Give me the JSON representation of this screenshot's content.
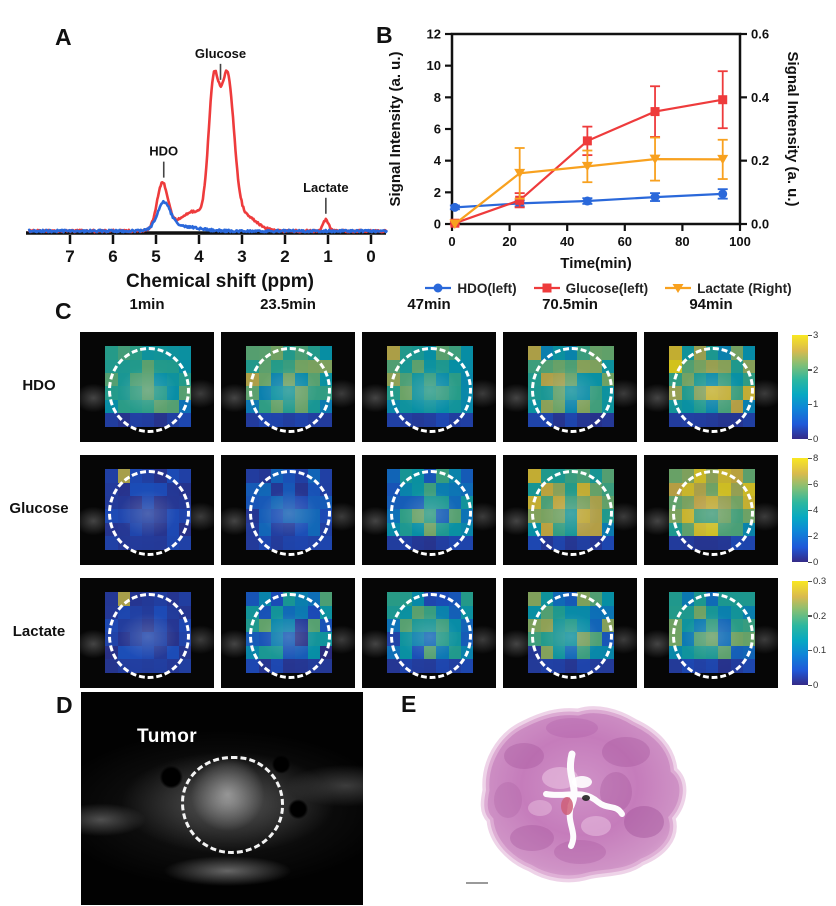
{
  "panels": {
    "a": "A",
    "b": "B",
    "c": "C",
    "d": "D",
    "e": "E"
  },
  "colors": {
    "red": "#ee3b3c",
    "blue": "#2a68da",
    "orange": "#f8a11f",
    "roi": "#ffffff"
  },
  "chart_data": [
    {
      "id": "nmr-spectrum",
      "type": "line",
      "panel": "A",
      "xlabel": "Chemical shift (ppm)",
      "x_ticks": [
        "7",
        "6",
        "5",
        "4",
        "3",
        "2",
        "1",
        "0"
      ],
      "x_reversed": true,
      "peaks": [
        {
          "label": "HDO",
          "ppm": 4.82
        },
        {
          "label": "Glucose",
          "ppm": 3.5
        },
        {
          "label": "Lactate",
          "ppm": 1.05
        }
      ],
      "series": [
        {
          "name": "glucose-injected-spectrum",
          "color": "#ee3b3c",
          "gaussians": [
            [
              4.85,
              0.28,
              0.13
            ],
            [
              4.1,
              0.12,
              0.35
            ],
            [
              3.66,
              0.8,
              0.12
            ],
            [
              3.34,
              0.88,
              0.15
            ],
            [
              3.0,
              0.1,
              0.3
            ],
            [
              1.05,
              0.068,
              0.07
            ]
          ]
        },
        {
          "name": "baseline-spectrum",
          "color": "#2a68da",
          "gaussians": [
            [
              4.82,
              0.155,
              0.15
            ],
            [
              4.45,
              0.03,
              0.4
            ]
          ]
        }
      ]
    },
    {
      "id": "kinetics",
      "type": "line",
      "panel": "B",
      "xlabel": "Time(min)",
      "ylabel_left": "Signal Intensity (a. u.)",
      "ylabel_right": "Signal Intensity (a. u.)",
      "x": [
        1,
        23.5,
        47,
        70.5,
        94
      ],
      "xlim": [
        0,
        100
      ],
      "x_ticks": [
        "0",
        "20",
        "40",
        "60",
        "80",
        "100"
      ],
      "ylim_left": [
        0,
        12
      ],
      "y_ticks_left": [
        "0",
        "2",
        "4",
        "6",
        "8",
        "10",
        "12"
      ],
      "ylim_right": [
        0,
        0.6
      ],
      "y_ticks_right": [
        "0.0",
        "0.2",
        "0.4",
        "0.6"
      ],
      "grid": false,
      "legend_position": "bottom",
      "series": [
        {
          "name": "HDO(left)",
          "axis": "left",
          "marker": "circle",
          "color": "#2a68da",
          "values": [
            1.05,
            1.3,
            1.45,
            1.7,
            1.9
          ],
          "errors": [
            0.12,
            0.18,
            0.18,
            0.25,
            0.3
          ]
        },
        {
          "name": "Glucose(left)",
          "axis": "left",
          "marker": "square",
          "color": "#ee3b3c",
          "values": [
            0.05,
            1.5,
            5.25,
            7.1,
            7.85
          ],
          "errors": [
            0.08,
            0.45,
            0.9,
            1.6,
            1.8
          ]
        },
        {
          "name": "Lactate (Right)",
          "axis": "right",
          "marker": "triangle-down",
          "color": "#f8a11f",
          "values": [
            0.0,
            0.16,
            0.182,
            0.205,
            0.204
          ],
          "errors": [
            0.0,
            0.08,
            0.05,
            0.068,
            0.062
          ]
        }
      ]
    },
    {
      "id": "parametric-maps",
      "type": "heatmap",
      "panel": "C",
      "columns": [
        "1min",
        "23.5min",
        "47min",
        "70.5min",
        "94min"
      ],
      "colormap": "parula",
      "roi_annotation": "white dashed circle (tumor)",
      "rows": [
        {
          "label": "HDO",
          "colorbar_range": [
            0,
            3
          ],
          "colorbar_ticks": [
            "3",
            "2",
            "1",
            "0"
          ],
          "levels": [
            0.52,
            0.55,
            0.55,
            0.6,
            0.66
          ],
          "variance": [
            0.16,
            0.2,
            0.17,
            0.26,
            0.3
          ]
        },
        {
          "label": "Glucose",
          "colorbar_range": [
            0,
            8
          ],
          "colorbar_ticks": [
            "8",
            "6",
            "4",
            "2",
            "0"
          ],
          "levels": [
            0.1,
            0.16,
            0.45,
            0.72,
            0.8
          ],
          "variance": [
            0.05,
            0.1,
            0.3,
            0.22,
            0.18
          ]
        },
        {
          "label": "Lactate",
          "colorbar_range": [
            0,
            0.3
          ],
          "colorbar_ticks": [
            "0.3",
            "0.2",
            "0.1",
            "0"
          ],
          "levels": [
            0.1,
            0.38,
            0.4,
            0.45,
            0.45
          ],
          "variance": [
            0.05,
            0.36,
            0.3,
            0.34,
            0.3
          ]
        }
      ]
    }
  ],
  "panel_d": {
    "annotation": "Tumor",
    "description": "axial T2 MRI with dashed tumor outline"
  },
  "panel_e": {
    "description": "H&E histology section of tumor"
  }
}
